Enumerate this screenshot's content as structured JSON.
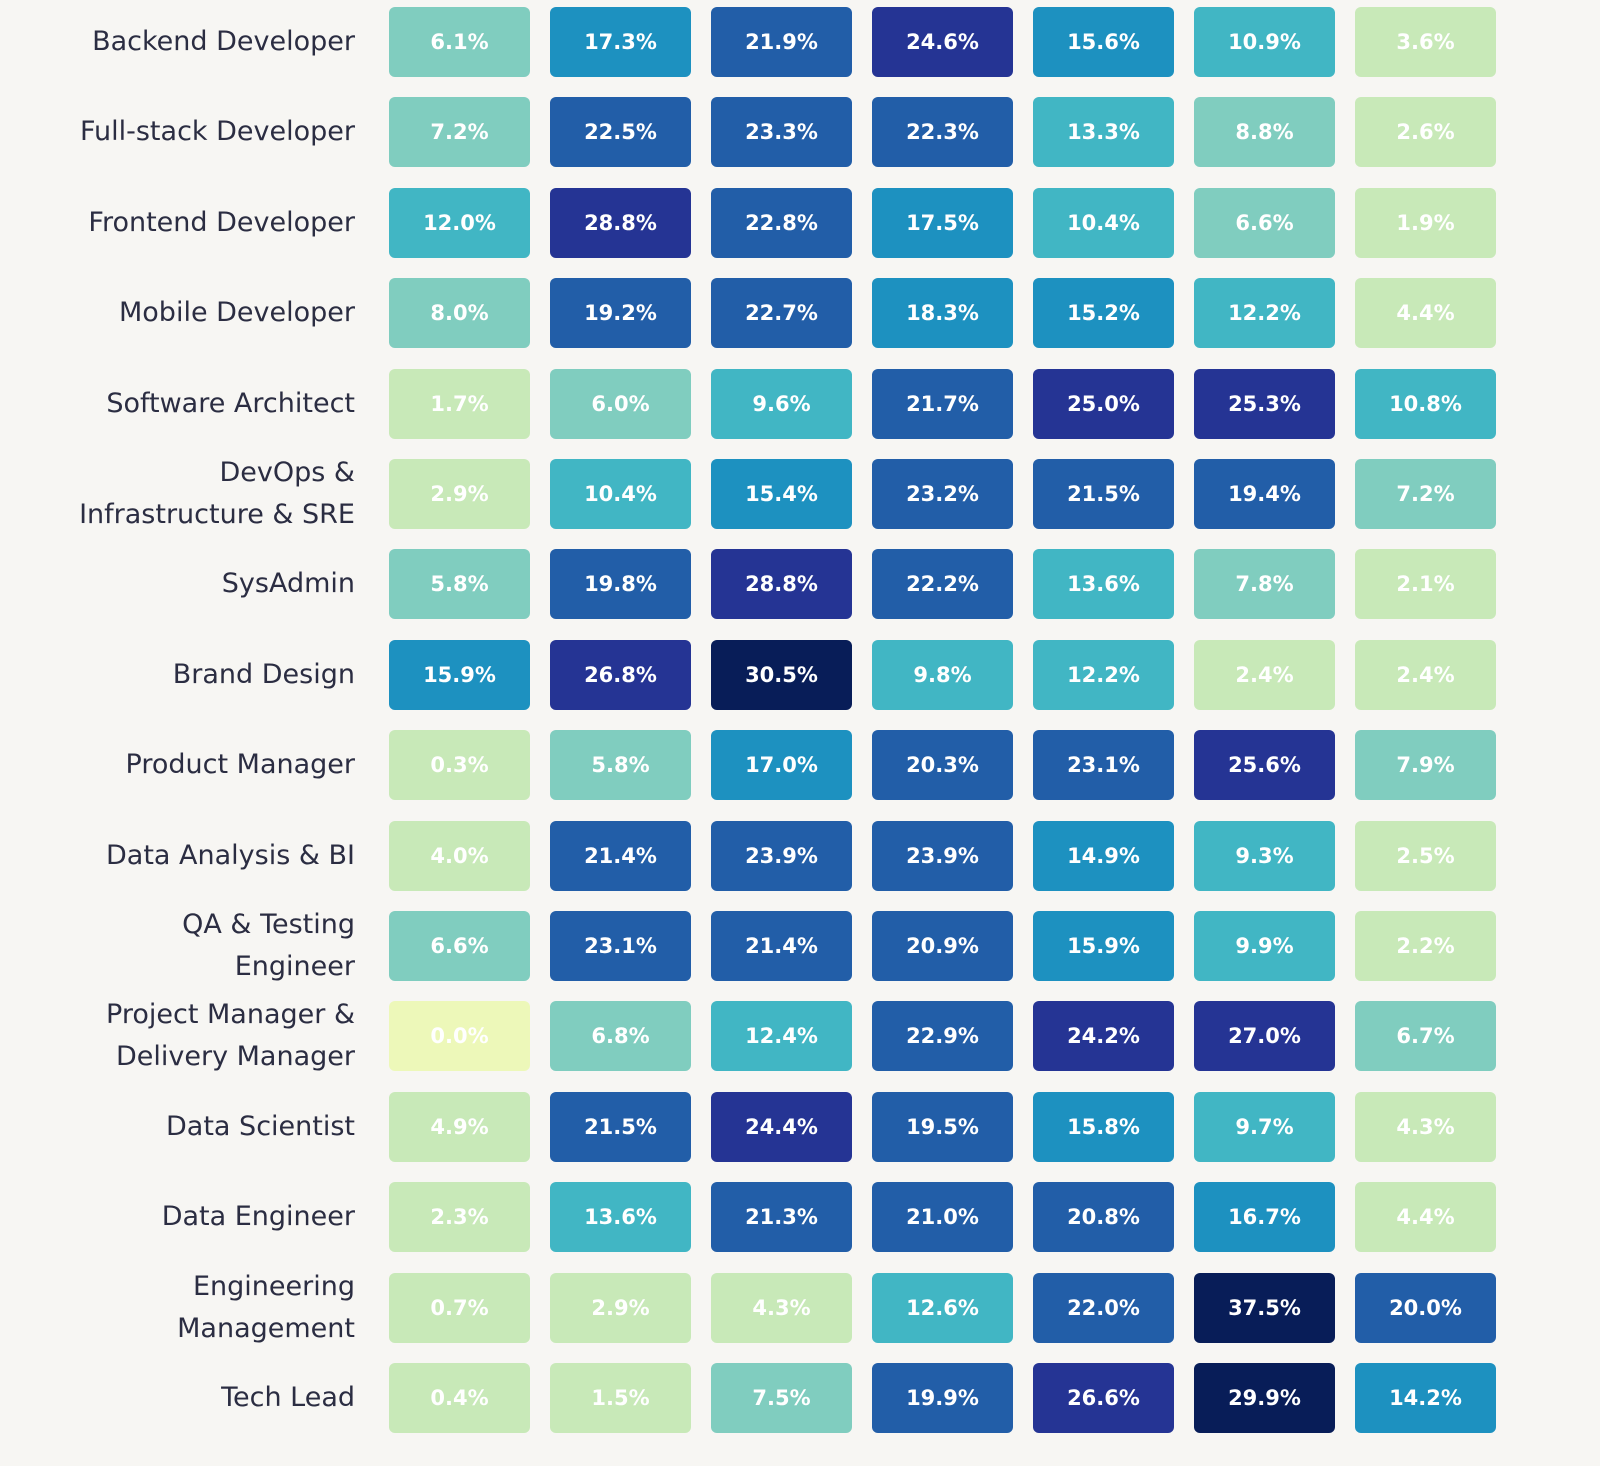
{
  "chart_data": {
    "type": "heatmap",
    "title": "",
    "xlabel": "",
    "ylabel": "",
    "rows": [
      "Backend Developer",
      "Full-stack Developer",
      "Frontend Developer",
      "Mobile Developer",
      "Software Architect",
      "DevOps &\nInfrastructure & SRE",
      "SysAdmin",
      "Brand Design",
      "Product Manager",
      "Data Analysis & BI",
      "QA & Testing\nEngineer",
      "Project Manager &\nDelivery Manager",
      "Data Scientist",
      "Data Engineer",
      "Engineering\nManagement",
      "Tech Lead"
    ],
    "columns": [
      "",
      "",
      "",
      "",
      "",
      "",
      ""
    ],
    "unit": "%",
    "values": [
      [
        6.1,
        17.3,
        21.9,
        24.6,
        15.6,
        10.9,
        3.6
      ],
      [
        7.2,
        22.5,
        23.3,
        22.3,
        13.3,
        8.8,
        2.6
      ],
      [
        12.0,
        28.8,
        22.8,
        17.5,
        10.4,
        6.6,
        1.9
      ],
      [
        8.0,
        19.2,
        22.7,
        18.3,
        15.2,
        12.2,
        4.4
      ],
      [
        1.7,
        6.0,
        9.6,
        21.7,
        25.0,
        25.3,
        10.8
      ],
      [
        2.9,
        10.4,
        15.4,
        23.2,
        21.5,
        19.4,
        7.2
      ],
      [
        5.8,
        19.8,
        28.8,
        22.2,
        13.6,
        7.8,
        2.1
      ],
      [
        15.9,
        26.8,
        30.5,
        9.8,
        12.2,
        2.4,
        2.4
      ],
      [
        0.3,
        5.8,
        17.0,
        20.3,
        23.1,
        25.6,
        7.9
      ],
      [
        4.0,
        21.4,
        23.9,
        23.9,
        14.9,
        9.3,
        2.5
      ],
      [
        6.6,
        23.1,
        21.4,
        20.9,
        15.9,
        9.9,
        2.2
      ],
      [
        0.0,
        6.8,
        12.4,
        22.9,
        24.2,
        27.0,
        6.7
      ],
      [
        4.9,
        21.5,
        24.4,
        19.5,
        15.8,
        9.7,
        4.3
      ],
      [
        2.3,
        13.6,
        21.3,
        21.0,
        20.8,
        16.7,
        4.4
      ],
      [
        0.7,
        2.9,
        4.3,
        12.6,
        22.0,
        37.5,
        20.0
      ],
      [
        0.4,
        1.5,
        7.5,
        19.9,
        26.6,
        29.9,
        14.2
      ]
    ],
    "colorscale": [
      {
        "max": 0.0,
        "color": "#edf8b9"
      },
      {
        "max": 5.0,
        "color": "#c8e9b8"
      },
      {
        "max": 9.0,
        "color": "#80cdbf"
      },
      {
        "max": 14.0,
        "color": "#41b6c4"
      },
      {
        "max": 19.0,
        "color": "#1d91c0"
      },
      {
        "max": 24.0,
        "color": "#225ea8"
      },
      {
        "max": 29.0,
        "color": "#253494"
      },
      {
        "max": 100.0,
        "color": "#081d58"
      }
    ],
    "text_color": "#ffffff",
    "legend": "none",
    "grid": false
  }
}
